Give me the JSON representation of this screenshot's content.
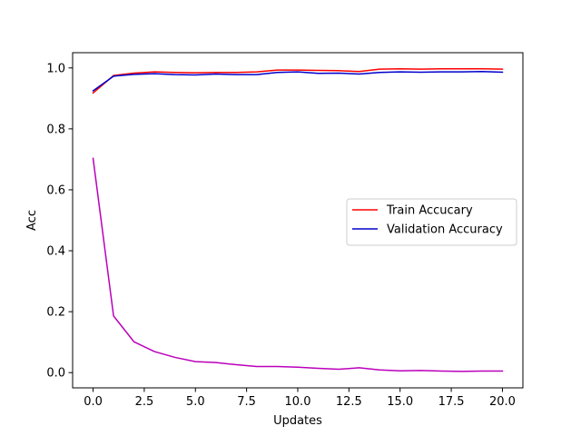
{
  "chart_data": {
    "type": "line",
    "title": "",
    "xlabel": "Updates",
    "ylabel": "Acc",
    "xlim": [
      -1,
      21
    ],
    "ylim": [
      -0.05,
      1.05
    ],
    "xticks": [
      0.0,
      2.5,
      5.0,
      7.5,
      10.0,
      12.5,
      15.0,
      17.5,
      20.0
    ],
    "xtick_labels": [
      "0.0",
      "2.5",
      "5.0",
      "7.5",
      "10.0",
      "12.5",
      "15.0",
      "17.5",
      "20.0"
    ],
    "yticks": [
      0.0,
      0.2,
      0.4,
      0.6,
      0.8,
      1.0
    ],
    "ytick_labels": [
      "0.0",
      "0.2",
      "0.4",
      "0.6",
      "0.8",
      "1.0"
    ],
    "grid": false,
    "legend_position": "center-right",
    "x": [
      0,
      1,
      2,
      3,
      4,
      5,
      6,
      7,
      8,
      9,
      10,
      11,
      12,
      13,
      14,
      15,
      16,
      17,
      18,
      19,
      20
    ],
    "series": [
      {
        "name": "Train Accucary",
        "color": "#ff0000",
        "in_legend": true,
        "values": [
          0.918,
          0.975,
          0.983,
          0.987,
          0.985,
          0.984,
          0.985,
          0.985,
          0.987,
          0.993,
          0.993,
          0.992,
          0.991,
          0.988,
          0.996,
          0.997,
          0.996,
          0.997,
          0.997,
          0.997,
          0.996
        ]
      },
      {
        "name": "Validation Accuracy",
        "color": "#0000cc",
        "in_legend": true,
        "values": [
          0.925,
          0.973,
          0.979,
          0.981,
          0.978,
          0.977,
          0.98,
          0.978,
          0.978,
          0.985,
          0.987,
          0.982,
          0.983,
          0.98,
          0.985,
          0.987,
          0.986,
          0.987,
          0.987,
          0.988,
          0.986
        ]
      },
      {
        "color": "#bb00bb",
        "in_legend": false,
        "values": [
          0.703,
          0.186,
          0.101,
          0.069,
          0.05,
          0.036,
          0.033,
          0.026,
          0.02,
          0.02,
          0.018,
          0.014,
          0.011,
          0.016,
          0.009,
          0.006,
          0.007,
          0.005,
          0.004,
          0.005,
          0.005
        ]
      }
    ]
  }
}
